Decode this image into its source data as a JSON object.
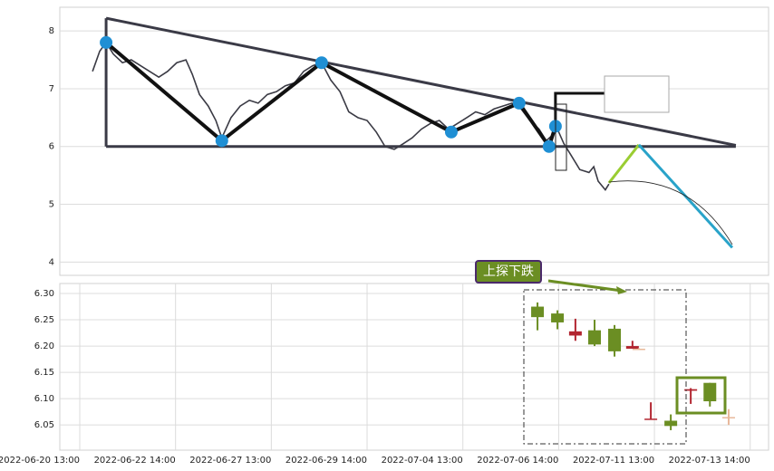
{
  "chart_data": [
    {
      "type": "line",
      "xlim": [
        -5,
        172.6
      ],
      "ylim": [
        3.77,
        8.41
      ],
      "yticks": [
        4,
        5,
        6,
        7,
        8
      ],
      "grid": true,
      "series": [
        {
          "color": "#3a3a44",
          "x": [
            3.2,
            5.0,
            6.6,
            8.4,
            10.7,
            12.9,
            15.2,
            17.5,
            19.8,
            22.0,
            24.3,
            26.6,
            28.2,
            30.0,
            32.2,
            34.1,
            35.6,
            37.9,
            40.2,
            42.5,
            44.7,
            47.0,
            49.3,
            51.5,
            53.8,
            56.1,
            58.4,
            60.6,
            62.9,
            65.2,
            67.4,
            69.7,
            72.0,
            74.3,
            76.5,
            78.8,
            81.1,
            83.3,
            85.6,
            87.9,
            90.1,
            92.4,
            94.7,
            97.0,
            99.2,
            101.5,
            103.8,
            106.0,
            108.3,
            110.6,
            112.8,
            115.1,
            116.9,
            118.5,
            119.7,
            121.3,
            123.1,
            125.3,
            127.6,
            128.8,
            129.9,
            131.7,
            132.6
          ],
          "values": [
            7.3,
            7.65,
            7.8,
            7.6,
            7.45,
            7.5,
            7.4,
            7.3,
            7.2,
            7.3,
            7.45,
            7.5,
            7.25,
            6.9,
            6.7,
            6.45,
            6.15,
            6.5,
            6.7,
            6.8,
            6.75,
            6.9,
            6.95,
            7.05,
            7.1,
            7.3,
            7.4,
            7.45,
            7.15,
            6.95,
            6.6,
            6.5,
            6.45,
            6.25,
            6.0,
            5.95,
            6.05,
            6.15,
            6.3,
            6.4,
            6.45,
            6.3,
            6.4,
            6.5,
            6.6,
            6.55,
            6.65,
            6.7,
            6.75,
            6.65,
            6.45,
            6.3,
            6.1,
            6.2,
            6.3,
            6.05,
            5.85,
            5.6,
            5.55,
            5.65,
            5.4,
            5.25,
            5.35
          ]
        }
      ],
      "pattern": {
        "color": "#111111",
        "marker_color": "#1f8fd4",
        "x": [
          6.6,
          35.6,
          60.6,
          93.1,
          110.1,
          117.6,
          119.2
        ],
        "values": [
          7.8,
          6.1,
          7.45,
          6.25,
          6.75,
          6.0,
          6.35
        ]
      },
      "trendlines": [
        {
          "color": "#3a3a46",
          "x": [
            6.6,
            164.4
          ],
          "values": [
            8.22,
            6.02
          ]
        },
        {
          "color": "#3a3a46",
          "x": [
            6.6,
            164.4
          ],
          "values": [
            6.0,
            6.0
          ]
        },
        {
          "color": "#3a3a46",
          "x": [
            6.6,
            6.6
          ],
          "values": [
            8.22,
            6.0
          ]
        },
        {
          "color": "#111111",
          "x": [
            119.2,
            119.2,
            131.5
          ],
          "values": [
            6.35,
            6.92,
            6.92
          ]
        },
        {
          "color": "#9acd32",
          "x": [
            132.6,
            140.1
          ],
          "values": [
            5.37,
            6.03
          ]
        },
        {
          "color": "#29a3c9",
          "x": [
            140.1,
            163.5
          ],
          "values": [
            6.03,
            4.25
          ]
        }
      ]
    },
    {
      "type": "candlestick",
      "annotation": "上探下跌",
      "xlim": [
        -5,
        172.6
      ],
      "ylim": [
        6.002,
        6.319
      ],
      "yticks": [
        {
          "value": 6.05,
          "label": "6.05"
        },
        {
          "value": 6.1,
          "label": "6.10"
        },
        {
          "value": 6.15,
          "label": "6.15"
        },
        {
          "value": 6.2,
          "label": "6.20"
        },
        {
          "value": 6.25,
          "label": "6.25"
        },
        {
          "value": 6.3,
          "label": "6.30"
        }
      ],
      "xticks": [
        {
          "value": 0,
          "label": "2022-06-20 13:00"
        },
        {
          "value": 24,
          "label": "2022-06-22 14:00"
        },
        {
          "value": 48,
          "label": "2022-06-27 13:00"
        },
        {
          "value": 72,
          "label": "2022-06-29 14:00"
        },
        {
          "value": 96,
          "label": "2022-07-04 13:00"
        },
        {
          "value": 120,
          "label": "2022-07-06 14:00"
        },
        {
          "value": 144,
          "label": "2022-07-11 13:00"
        },
        {
          "value": 168,
          "label": "2022-07-13 14:00"
        }
      ],
      "grid": true,
      "up_color": "#b22530",
      "down_color": "#6b8e23",
      "flat_color": "#e8b89a",
      "x": [
        114.7,
        119.7,
        124.2,
        129.0,
        134.0,
        138.5,
        140.1,
        143.1,
        148.1,
        153.1,
        157.9,
        162.6
      ],
      "open": [
        6.275,
        6.262,
        6.22,
        6.23,
        6.233,
        6.195,
        6.195,
        6.06,
        6.058,
        6.115,
        6.13,
        6.065
      ],
      "high": [
        6.283,
        6.268,
        6.252,
        6.25,
        6.24,
        6.21,
        6.196,
        6.093,
        6.07,
        6.12,
        6.13,
        6.08
      ],
      "low": [
        6.23,
        6.232,
        6.21,
        6.2,
        6.18,
        6.195,
        6.195,
        6.06,
        6.04,
        6.09,
        6.085,
        6.05
      ],
      "close": [
        6.255,
        6.245,
        6.228,
        6.203,
        6.19,
        6.2,
        6.195,
        6.062,
        6.048,
        6.118,
        6.095,
        6.065
      ]
    }
  ]
}
